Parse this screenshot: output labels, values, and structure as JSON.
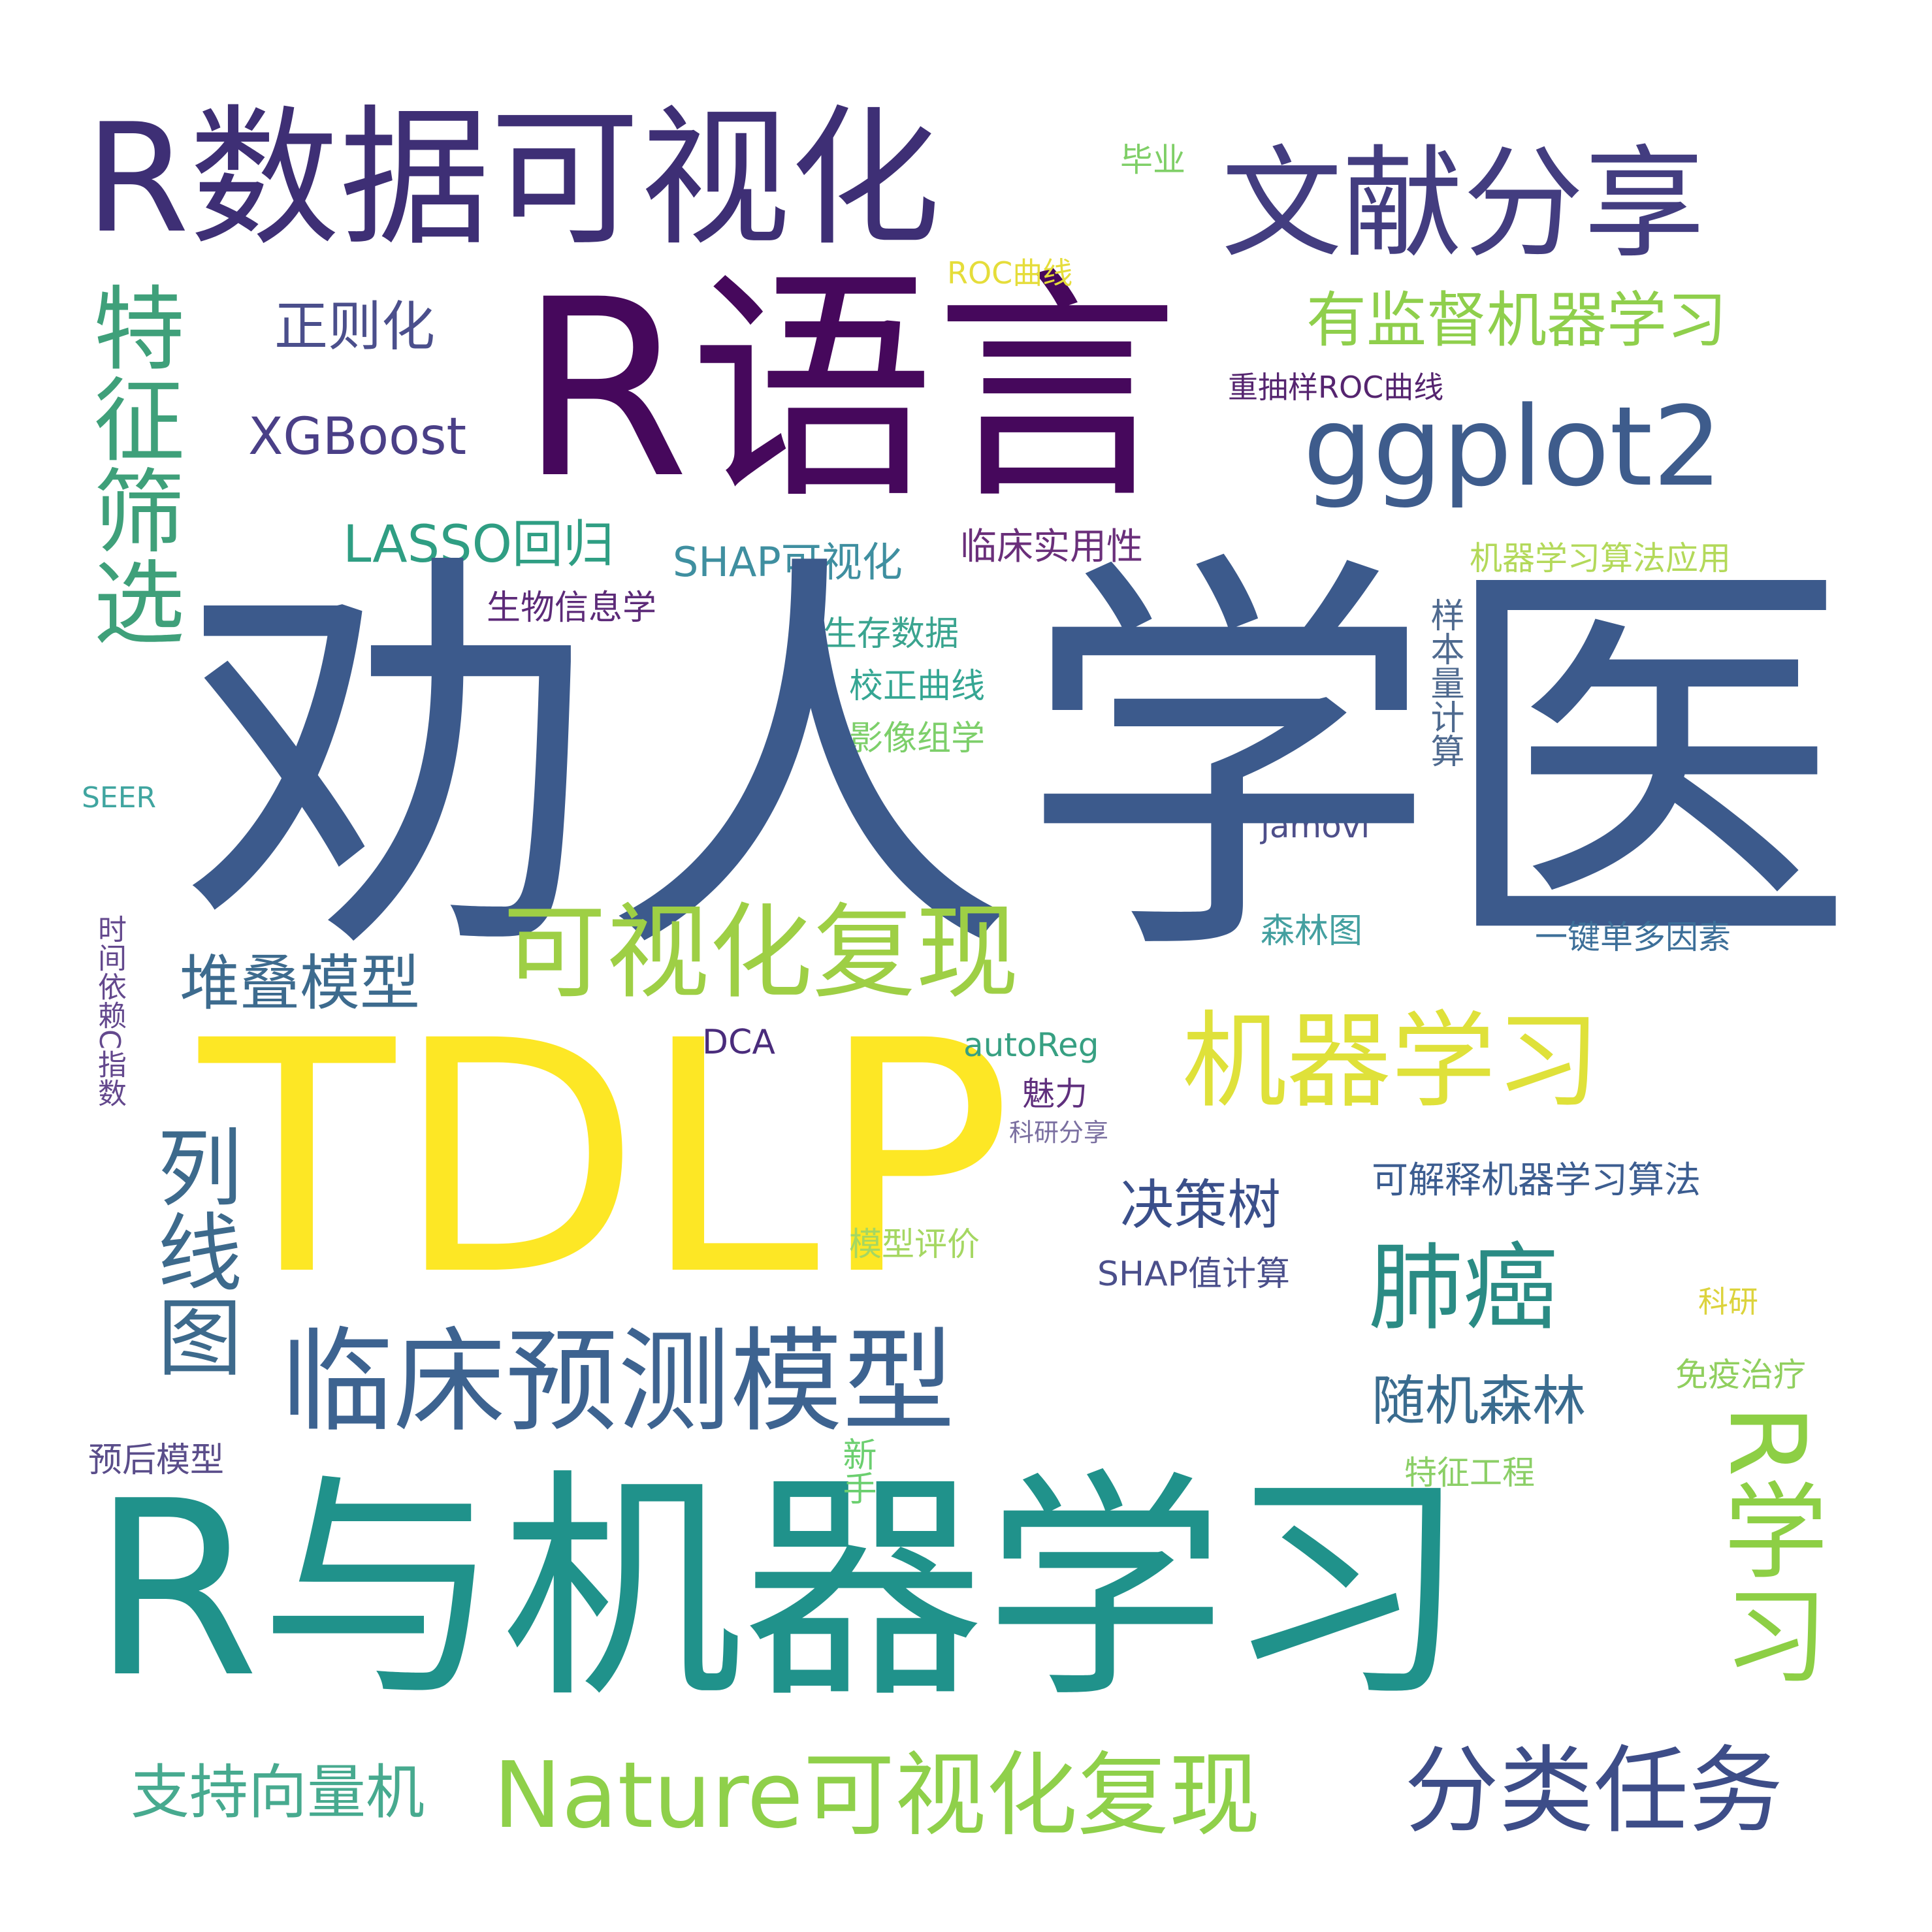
{
  "wordcloud": {
    "palette": "viridis",
    "background": "#ffffff",
    "words": [
      {
        "text": "R数据可视化",
        "color": "#3e2f75"
      },
      {
        "text": "文献分享",
        "color": "#433d80"
      },
      {
        "text": "R语言",
        "color": "#46085c"
      },
      {
        "text": "有监督机器学习",
        "color": "#8fcf4c"
      },
      {
        "text": "ggplot2",
        "color": "#3e5c8c"
      },
      {
        "text": "正则化",
        "color": "#4b4f8c"
      },
      {
        "text": "XGBoost",
        "color": "#4a3f87"
      },
      {
        "text": "LASSO回归",
        "color": "#2f9e83"
      },
      {
        "text": "SHAP可视化",
        "color": "#3f8fa0"
      },
      {
        "text": "临床实用性",
        "color": "#6a2f7a"
      },
      {
        "text": "重抽样ROC曲线",
        "color": "#55246f"
      },
      {
        "text": "ROC曲线",
        "color": "#e5dd3a"
      },
      {
        "text": "毕业",
        "color": "#7fcf67"
      },
      {
        "text": "机器学习算法应用",
        "color": "#b3d95a"
      },
      {
        "text": "生物信息学",
        "color": "#5c2a78"
      },
      {
        "text": "生存数据",
        "color": "#3aa48f"
      },
      {
        "text": "校正曲线",
        "color": "#35a693"
      },
      {
        "text": "影像组学",
        "color": "#7dcf6a"
      },
      {
        "text": "样本量计算",
        "color": "#4f6a8f"
      },
      {
        "text": "jamovi",
        "color": "#4e4f8a"
      },
      {
        "text": "特征筛选",
        "color": "#3fa07a"
      },
      {
        "text": "SEER",
        "color": "#40a5a0"
      },
      {
        "text": "劝人学医",
        "color": "#3c5a8c"
      },
      {
        "text": "可视化复现",
        "color": "#9ecf45"
      },
      {
        "text": "堆叠模型",
        "color": "#3d6b8e"
      },
      {
        "text": "机器学习",
        "color": "#dfe13a"
      },
      {
        "text": "TDLP",
        "color": "#fde725"
      },
      {
        "text": "DCA",
        "color": "#4a2c7c"
      },
      {
        "text": "autoReg",
        "color": "#37a082"
      },
      {
        "text": "魅力",
        "color": "#5f2f7d"
      },
      {
        "text": "科研分享",
        "color": "#7a6fa0"
      },
      {
        "text": "森林图",
        "color": "#44a0a0"
      },
      {
        "text": "一键单多因素",
        "color": "#3d6f99"
      },
      {
        "text": "可解释机器学习算法",
        "color": "#3c5d90"
      },
      {
        "text": "决策树",
        "color": "#3a4f8a"
      },
      {
        "text": "时间依赖C指数",
        "color": "#63488d"
      },
      {
        "text": "列线图",
        "color": "#3d6a8c"
      },
      {
        "text": "模型评价",
        "color": "#a5d762"
      },
      {
        "text": "SHAP值计算",
        "color": "#4b4f8b"
      },
      {
        "text": "肺癌",
        "color": "#2a8b84"
      },
      {
        "text": "临床预测模型",
        "color": "#3d6390"
      },
      {
        "text": "随机森林",
        "color": "#3a6c8f"
      },
      {
        "text": "科研",
        "color": "#dcd33c"
      },
      {
        "text": "免疫治疗",
        "color": "#90cf5e"
      },
      {
        "text": "预后模型",
        "color": "#5a4d8a"
      },
      {
        "text": "特征工程",
        "color": "#8bcf66"
      },
      {
        "text": "R与机器学习",
        "color": "#20928b"
      },
      {
        "text": "R学习",
        "color": "#8dcf45"
      },
      {
        "text": "新手",
        "color": "#6bcf6f"
      },
      {
        "text": "支持向量机",
        "color": "#47aa8f"
      },
      {
        "text": "Nature可视化复现",
        "color": "#8fd04a"
      },
      {
        "text": "分类任务",
        "color": "#3d4d88"
      }
    ]
  }
}
